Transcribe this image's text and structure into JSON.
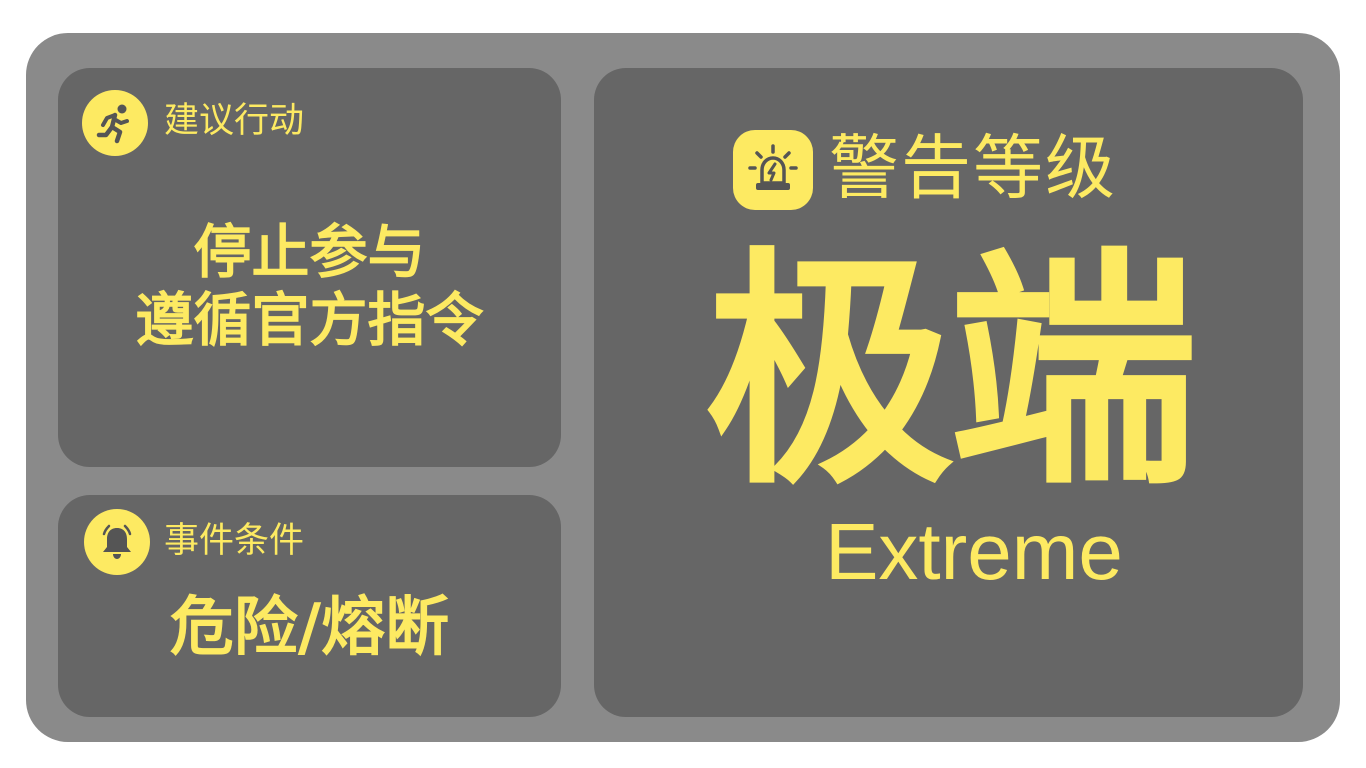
{
  "colors": {
    "accent": "#fdea62",
    "frame": "#8a8a8a",
    "panel": "#666666"
  },
  "action": {
    "icon": "running-person-icon",
    "label": "建议行动",
    "lines": [
      "停止参与",
      "遵循官方指令"
    ]
  },
  "condition": {
    "icon": "bell-icon",
    "label": "事件条件",
    "value": "危险/熔断"
  },
  "level": {
    "icon": "alarm-siren-icon",
    "label": "警告等级",
    "value": "极端",
    "value_en": "Extreme"
  }
}
